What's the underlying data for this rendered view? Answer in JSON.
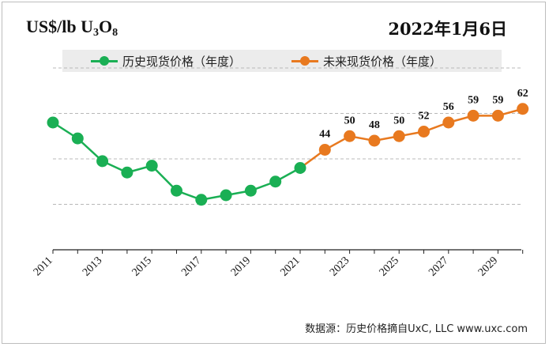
{
  "header": {
    "unit_prefix": "US$/lb U",
    "unit_sub1": "3",
    "unit_mid": "O",
    "unit_sub2": "8",
    "date": "2022年1月6日"
  },
  "legend": {
    "historical": "历史现货价格（年度）",
    "forecast": "未来现货价格（年度）"
  },
  "source": "数据源：历史价格摘自UxC, LLC  www.uxc.com",
  "colors": {
    "historical": "#1aaf54",
    "forecast": "#e8791f",
    "grid": "#b8b8b8"
  },
  "chart_data": {
    "type": "line",
    "x_tick_labels": [
      "2011",
      "2013",
      "2015",
      "2017",
      "2019",
      "2021",
      "2023",
      "2025",
      "2027",
      "2029"
    ],
    "ylim": [
      0,
      80
    ],
    "grid": true,
    "legend_position": "top",
    "series": [
      {
        "name": "历史现货价格（年度）",
        "color": "#1aaf54",
        "x": [
          2011,
          2012,
          2013,
          2014,
          2015,
          2016,
          2017,
          2018,
          2019,
          2020,
          2021
        ],
        "values": [
          56,
          49,
          39,
          34,
          37,
          26,
          22,
          24,
          26,
          30,
          36
        ]
      },
      {
        "name": "未来现货价格（年度）",
        "color": "#e8791f",
        "x": [
          2021,
          2022,
          2023,
          2024,
          2025,
          2026,
          2027,
          2028,
          2029,
          2030
        ],
        "values": [
          36,
          44,
          50,
          48,
          50,
          52,
          56,
          59,
          59,
          62
        ],
        "data_labels": [
          null,
          "44",
          "50",
          "48",
          "50",
          "52",
          "56",
          "59",
          "59",
          "62"
        ]
      }
    ]
  }
}
